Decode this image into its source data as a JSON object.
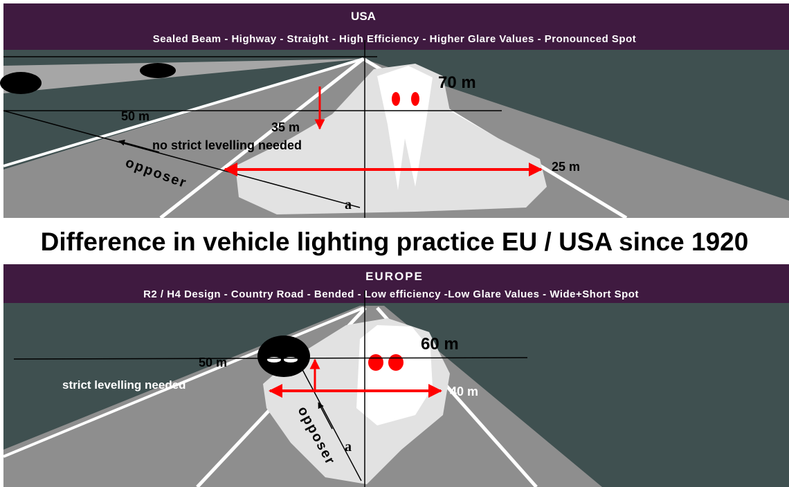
{
  "usa": {
    "title": "USA",
    "subtitle": "Sealed Beam - Highway  - Straight  - High Efficiency - Higher Glare Values - Pronounced  Spot",
    "labels": {
      "far": "70 m",
      "left": "50 m",
      "near": "35 m",
      "note": "no strict levelling needed",
      "width": "25 m",
      "opposer": "opposer",
      "angle": "a"
    }
  },
  "main_title": "Difference in vehicle lighting practice EU / USA since 1920",
  "europe": {
    "title": "EUROPE",
    "subtitle": "R2 / H4 Design - Country Road - Bended - Low efficiency -Low Glare Values - Wide+Short Spot",
    "labels": {
      "far": "60 m",
      "left": "50 m",
      "note": "strict levelling needed",
      "width": "40 m",
      "opposer": "opposer",
      "angle": "a"
    }
  }
}
